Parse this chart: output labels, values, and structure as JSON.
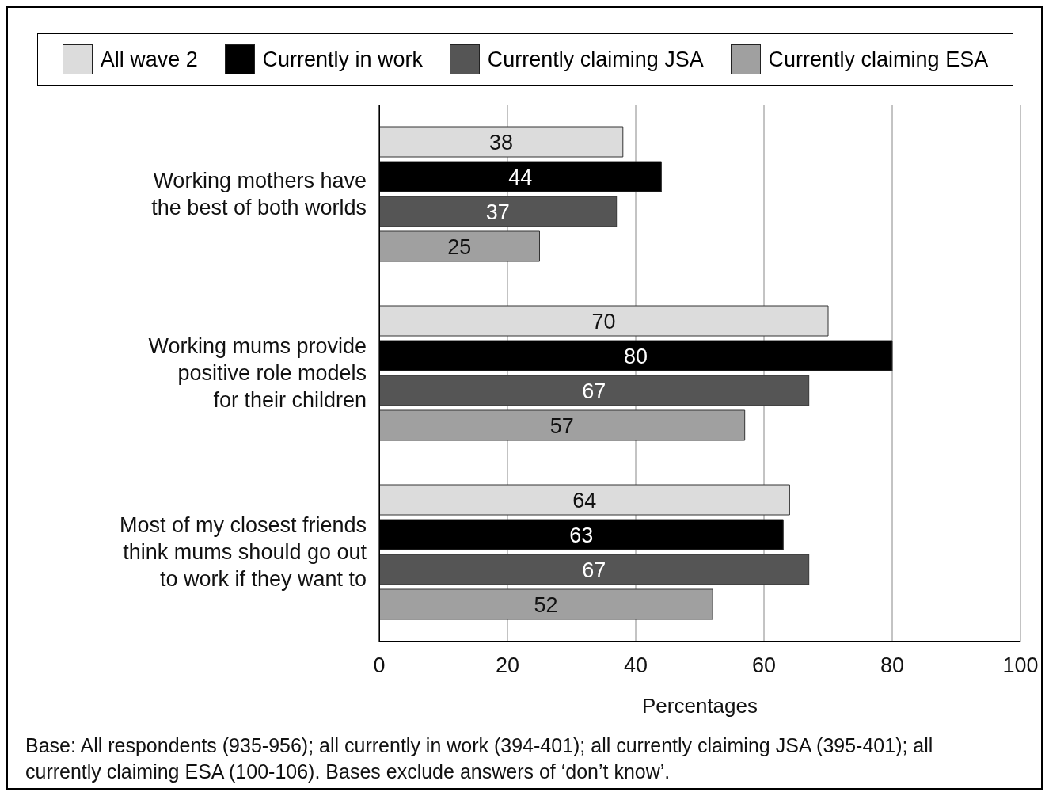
{
  "chart_data": {
    "type": "bar",
    "orientation": "horizontal",
    "categories": [
      "Working mothers have the best of both worlds",
      "Working mums provide positive role models for their children",
      "Most of my closest friends think mums should go out to work if they want to"
    ],
    "series": [
      {
        "name": "All wave 2",
        "color": "#dcdcdc",
        "values": [
          38,
          70,
          64
        ]
      },
      {
        "name": "Currently in work",
        "color": "#000000",
        "values": [
          44,
          80,
          63
        ]
      },
      {
        "name": "Currently claiming JSA",
        "color": "#555555",
        "values": [
          37,
          67,
          67
        ]
      },
      {
        "name": "Currently claiming ESA",
        "color": "#a0a0a0",
        "values": [
          25,
          57,
          52
        ]
      }
    ],
    "xlim": [
      0,
      100
    ],
    "xticks": [
      0,
      20,
      40,
      60,
      80,
      100
    ],
    "xlabel": "Percentages",
    "grid": "x",
    "legend": "top",
    "data_labels": true,
    "annotations": [
      "Base: All respondents (935-956); all currently in work (394-401); all currently claiming JSA (395-401); all currently claiming ESA (100-106). Bases exclude answers of ‘don’t know’."
    ]
  }
}
